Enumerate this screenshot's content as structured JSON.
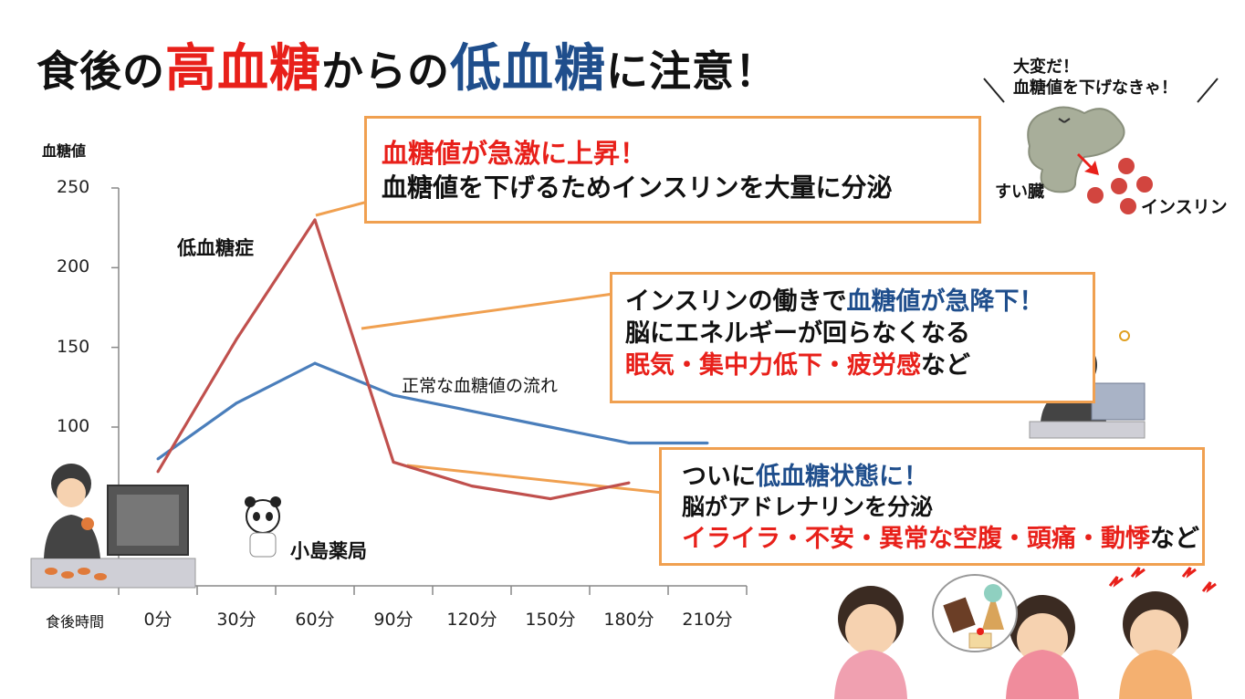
{
  "title": {
    "part1": "食後の",
    "part2": "高血糖",
    "part3": "からの",
    "part4": "低血糖",
    "part5": "に注意！",
    "colors": {
      "high": "#e8201a",
      "low": "#1f4e8c"
    }
  },
  "chart_data": {
    "type": "line",
    "ylabel": "血糖値",
    "xlabel": "食後時間",
    "categories": [
      "0分",
      "30分",
      "60分",
      "90分",
      "120分",
      "150分",
      "180分",
      "210分"
    ],
    "ylim": [
      0,
      250
    ],
    "yticks": [
      "250",
      "200",
      "150",
      "100"
    ],
    "series": [
      {
        "name": "正常な血糖値の流れ",
        "color": "#4a7ebb",
        "values": [
          80,
          115,
          140,
          120,
          110,
          100,
          90,
          90
        ]
      },
      {
        "name": "低血糖症",
        "color": "#c0504d",
        "values": [
          72,
          155,
          230,
          78,
          63,
          55,
          65,
          null
        ]
      }
    ]
  },
  "callouts": {
    "rise": {
      "line1": "血糖値が急激に上昇！",
      "line2": "血糖値を下げるためインスリンを大量に分泌"
    },
    "drop": {
      "line1_a": "インスリンの働きで",
      "line1_b": "血糖値が急降下！",
      "line2": "脳にエネルギーが回らなくなる",
      "line3_a": "眠気・集中力低下・疲労感",
      "line3_b": "など"
    },
    "hypo": {
      "line1_a": "ついに",
      "line1_b": "低血糖状態に！",
      "line2": "脳がアドレナリンを分泌",
      "line3_a": "イライラ・不安・異常な空腹・頭痛・動悸",
      "line3_b": "など"
    }
  },
  "pancreas": {
    "speech1": "大変だ！",
    "speech2": "血糖値を下げなきゃ！",
    "organ_label": "すい臓",
    "insulin_label": "インスリン"
  },
  "brand": "小島薬局"
}
